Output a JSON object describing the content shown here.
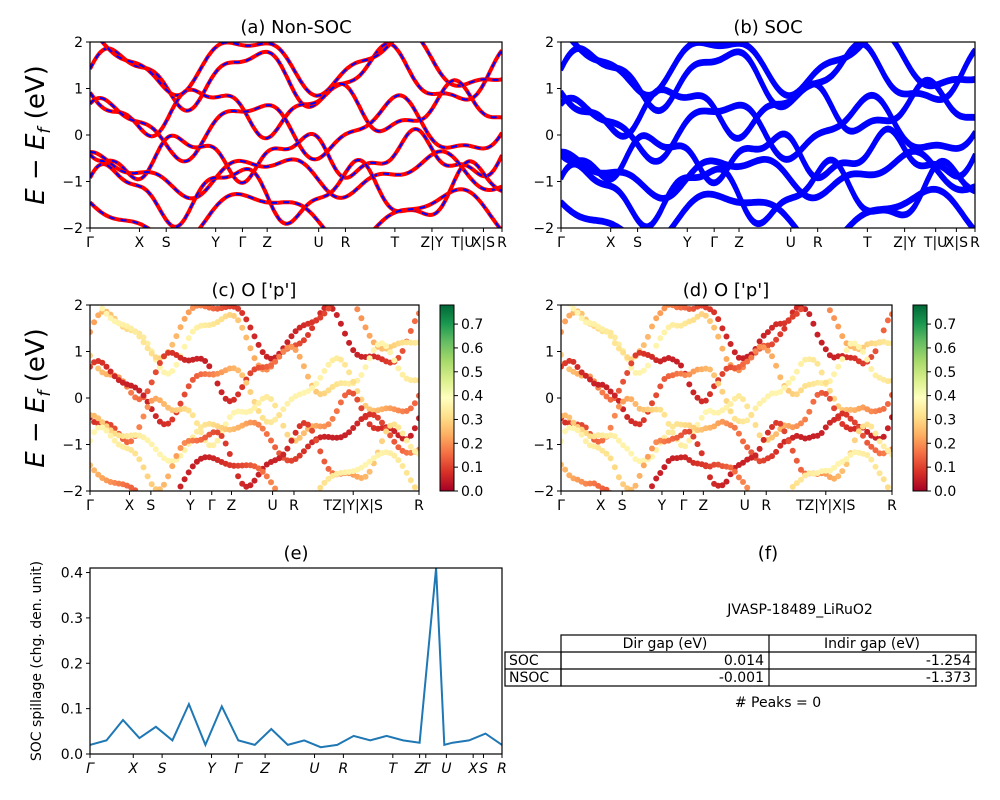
{
  "figure": {
    "ylabel_a": "E − E_f (eV)",
    "ylabel_c": "E − E_f (eV)"
  },
  "kpath_labels": [
    "Γ",
    "X",
    "S",
    "Y",
    "Γ",
    "Z",
    "U",
    "R",
    "T",
    "Z|Y",
    "T|U",
    "X|S",
    "R"
  ],
  "chart_data": [
    {
      "panel": "a",
      "type": "line",
      "title": "(a) Non-SOC",
      "xlabel": "",
      "ylabel": "E − E_f (eV)",
      "ylim": [
        -2,
        2
      ],
      "yticks": [
        -2,
        -1,
        0,
        1,
        2
      ],
      "xticks": [
        "Γ",
        "X",
        "S",
        "Y",
        "Γ",
        "Z",
        "U",
        "R",
        "T",
        "Z|Y",
        "T|U",
        "X|S",
        "R"
      ],
      "series": [
        {
          "style": "red solid + blue dashed overlay",
          "bands": "band energies approx.",
          "values": [
            1.2,
            1.5,
            0.8,
            0.7,
            -0.1,
            -0.5,
            -0.8,
            -1.8
          ]
        }
      ]
    },
    {
      "panel": "b",
      "type": "line",
      "title": "(b) SOC",
      "ylim": [
        -2,
        2
      ],
      "yticks": [
        -2,
        -1,
        0,
        1,
        2
      ],
      "xticks": [
        "Γ",
        "X",
        "S",
        "Y",
        "Γ",
        "Z",
        "U",
        "R",
        "T",
        "Z|Y",
        "T|U",
        "X|S",
        "R"
      ]
    },
    {
      "panel": "c",
      "type": "scatter",
      "title": "(c)  O ['p']",
      "ylabel": "E − E_f (eV)",
      "ylim": [
        -2,
        2
      ],
      "yticks": [
        -2,
        -1,
        0,
        1,
        2
      ],
      "colorbar": {
        "min": 0.0,
        "max": 0.75,
        "ticks": [
          "0.0",
          "0.1",
          "0.2",
          "0.3",
          "0.4",
          "0.5",
          "0.6",
          "0.7"
        ],
        "cmap": "RdYlGn"
      },
      "xticks": [
        "Γ",
        "X",
        "S",
        "Y",
        "Γ",
        "Z",
        "U",
        "R",
        "TZ|Y|X|S",
        "R"
      ]
    },
    {
      "panel": "d",
      "type": "scatter",
      "title": "(d) O ['p']",
      "ylim": [
        -2,
        2
      ],
      "yticks": [
        -2,
        -1,
        0,
        1,
        2
      ],
      "colorbar": {
        "min": 0.0,
        "max": 0.75,
        "ticks": [
          "0.0",
          "0.1",
          "0.2",
          "0.3",
          "0.4",
          "0.5",
          "0.6",
          "0.7"
        ],
        "cmap": "RdYlGn"
      },
      "xticks": [
        "Γ",
        "X",
        "S",
        "Y",
        "Γ",
        "Z",
        "U",
        "R",
        "TZ|Y|X|S",
        "R"
      ]
    },
    {
      "panel": "e",
      "type": "line",
      "title": "(e)",
      "ylabel": "SOC spillage (chg. den. unit)",
      "ylim": [
        0,
        0.41
      ],
      "yticks": [
        "0.0",
        "0.1",
        "0.2",
        "0.3",
        "0.4"
      ],
      "xticks": [
        "Γ",
        "X",
        "S",
        "Y",
        "Γ",
        "Z",
        "U",
        "R",
        "T",
        "Z",
        "T",
        "U",
        "X",
        "S",
        "R"
      ],
      "x": [
        0,
        0.04,
        0.08,
        0.12,
        0.16,
        0.2,
        0.24,
        0.28,
        0.32,
        0.36,
        0.4,
        0.44,
        0.48,
        0.52,
        0.56,
        0.6,
        0.64,
        0.68,
        0.72,
        0.76,
        0.8,
        0.84,
        0.86,
        0.88,
        0.92,
        0.96,
        1.0
      ],
      "values": [
        0.02,
        0.03,
        0.075,
        0.035,
        0.06,
        0.03,
        0.11,
        0.02,
        0.105,
        0.03,
        0.02,
        0.055,
        0.02,
        0.03,
        0.015,
        0.02,
        0.04,
        0.03,
        0.04,
        0.03,
        0.025,
        0.41,
        0.02,
        0.025,
        0.03,
        0.045,
        0.02
      ]
    },
    {
      "panel": "f",
      "type": "table",
      "title": "(f)",
      "caption": "JVASP-18489_LiRuO2",
      "columns": [
        "Dir gap (eV)",
        "Indir gap (eV)"
      ],
      "rows": [
        {
          "label": "SOC",
          "values": [
            "0.014",
            "-1.254"
          ]
        },
        {
          "label": "NSOC",
          "values": [
            "-0.001",
            "-1.373"
          ]
        }
      ],
      "footer": "# Peaks = 0"
    }
  ]
}
